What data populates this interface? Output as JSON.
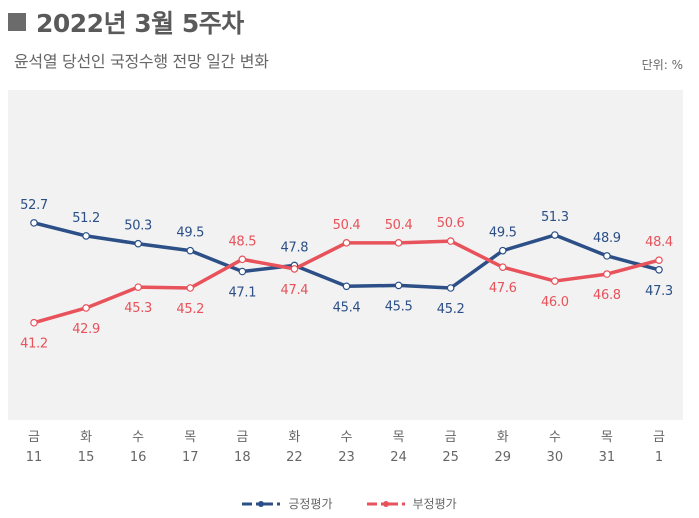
{
  "header": {
    "title": "2022년 3월 5주차",
    "subtitle": "윤석열 당선인 국정수행 전망 일간 변화",
    "unit": "단위: %"
  },
  "colors": {
    "positive": "#2b4f86",
    "negative": "#e8525b",
    "plot_bg": "#f2f2f2"
  },
  "chart_data": {
    "type": "line",
    "categories": [
      {
        "day": "금",
        "date": "11"
      },
      {
        "day": "화",
        "date": "15"
      },
      {
        "day": "수",
        "date": "16"
      },
      {
        "day": "목",
        "date": "17"
      },
      {
        "day": "금",
        "date": "18"
      },
      {
        "day": "화",
        "date": "22"
      },
      {
        "day": "수",
        "date": "23"
      },
      {
        "day": "목",
        "date": "24"
      },
      {
        "day": "금",
        "date": "25"
      },
      {
        "day": "화",
        "date": "29"
      },
      {
        "day": "수",
        "date": "30"
      },
      {
        "day": "목",
        "date": "31"
      },
      {
        "day": "금",
        "date": "1"
      }
    ],
    "series": [
      {
        "name": "긍정평가",
        "color": "#2b4f86",
        "values": [
          52.7,
          51.2,
          50.3,
          49.5,
          47.1,
          47.8,
          45.4,
          45.5,
          45.2,
          49.5,
          51.3,
          48.9,
          47.3
        ],
        "label_pos": [
          "above",
          "above",
          "above",
          "above",
          "below",
          "above",
          "below",
          "below",
          "below",
          "above",
          "above",
          "above",
          "below"
        ]
      },
      {
        "name": "부정평가",
        "color": "#e8525b",
        "values": [
          41.2,
          42.9,
          45.3,
          45.2,
          48.5,
          47.4,
          50.4,
          50.4,
          50.6,
          47.6,
          46.0,
          46.8,
          48.4
        ],
        "label_pos": [
          "below",
          "below",
          "below",
          "below",
          "above",
          "below",
          "above",
          "above",
          "above",
          "below",
          "below",
          "below",
          "above"
        ]
      }
    ],
    "ylim": [
      30,
      68
    ],
    "grid": false,
    "legend": "bottom-center"
  }
}
